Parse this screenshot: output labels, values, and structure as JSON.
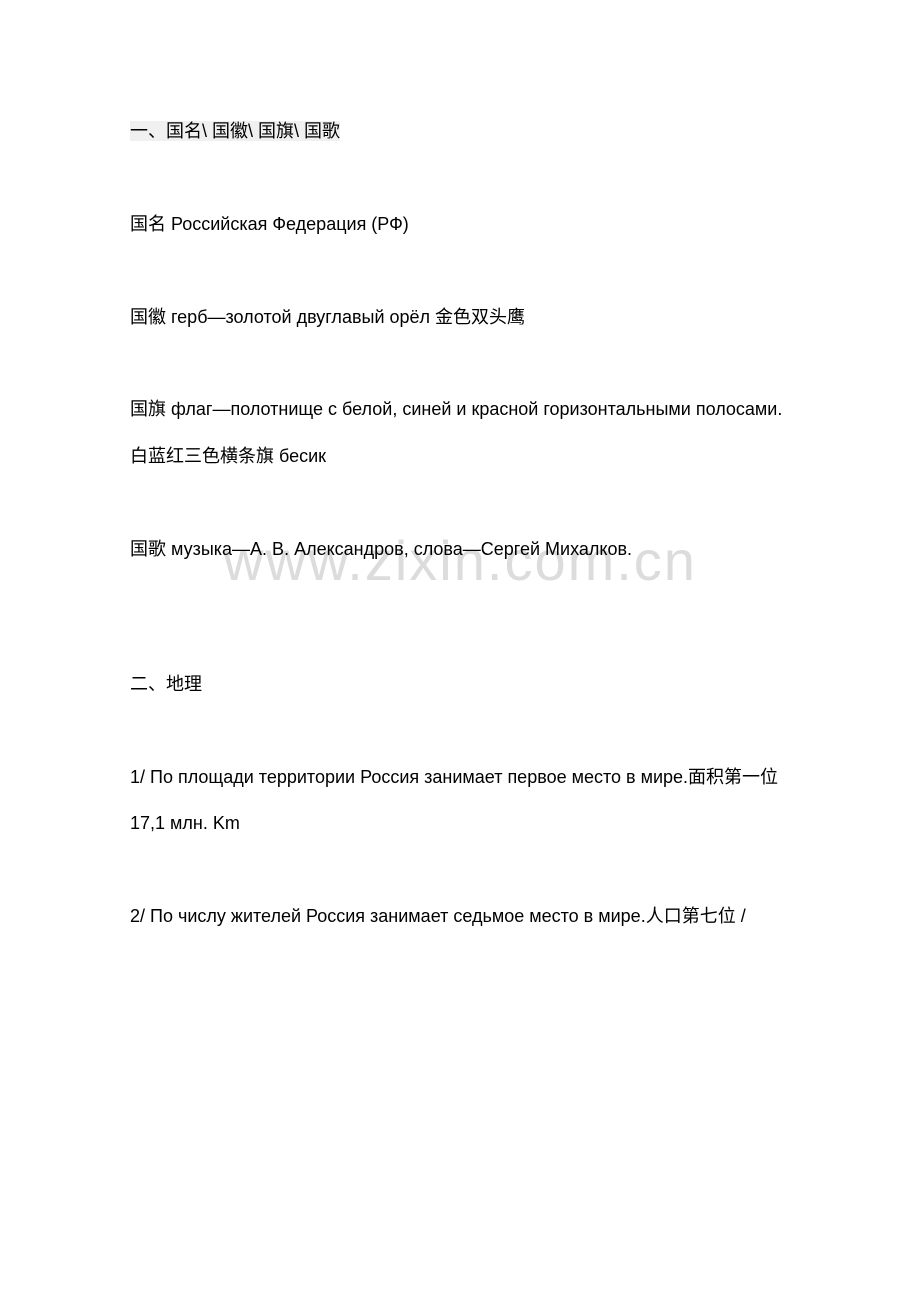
{
  "watermark": "www.zixin.com.cn",
  "section1": {
    "title": "一、国名\\ 国徽\\ 国旗\\ 国歌",
    "line1": "国名 Российская Федерация (РФ)",
    "line2": "国徽 герб—золотой двуглавый орёл 金色双头鹰",
    "line3": "国旗 флаг—полотнище с белой, синей и красной горизонтальными полосами.白蓝红三色横条旗 бесик",
    "line4": "国歌 музыка—А. В. Александров, слова—Сергей Михалков."
  },
  "section2": {
    "title": "二、地理",
    "line1": "1/ По площади территории Россия занимает первое место в мире.面积第一位 17,1 млн. Km",
    "line2": "2/ По числу жителей Россия занимает седьмое место в мире.人口第七位 /"
  },
  "styles": {
    "background_color": "#ffffff",
    "text_color": "#000000",
    "watermark_color": "#dcdcdc",
    "highlight_color": "#f0f0f0",
    "font_size": 18,
    "watermark_font_size": 56,
    "line_height": 2.6
  }
}
